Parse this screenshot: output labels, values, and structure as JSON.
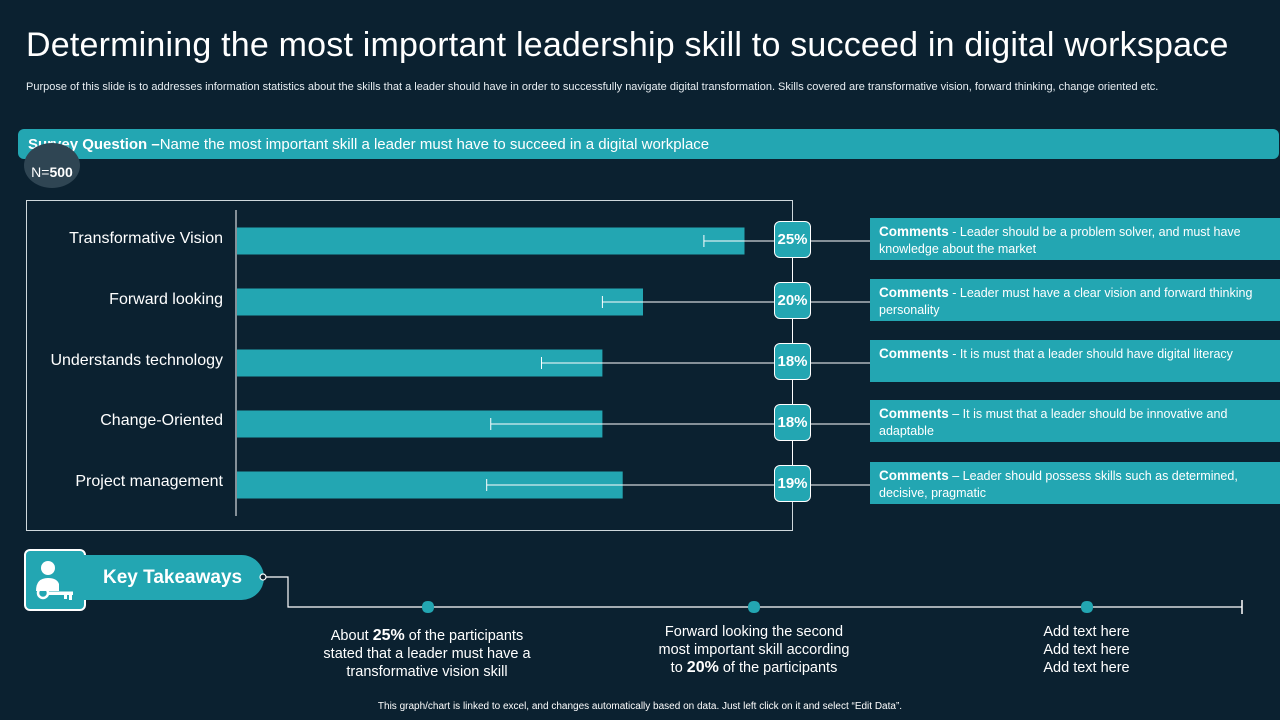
{
  "title": "Determining the most important leadership skill to succeed in digital workspace",
  "subtitle": "Purpose of this slide is to addresses information statistics about the skills that a leader should have in order to successfully navigate digital transformation. Skills covered are transformative vision, forward thinking, change oriented etc.",
  "survey": {
    "label": "Survey Question –",
    "question": " Name the most important skill a leader must have to succeed in a digital workplace",
    "n_prefix": "N=",
    "n_value": "500"
  },
  "chart_data": {
    "type": "bar",
    "orientation": "horizontal",
    "categories": [
      "Transformative Vision",
      "Forward looking",
      "Understands technology",
      "Change-Oriented",
      "Project management"
    ],
    "values": [
      25,
      20,
      18,
      18,
      19
    ],
    "value_labels": [
      "25%",
      "20%",
      "18%",
      "18%",
      "19%"
    ],
    "error_low": [
      23,
      18,
      15,
      12.5,
      12.3
    ],
    "bar_color": "#23a6b2",
    "title": "",
    "xlabel": "",
    "ylabel": ""
  },
  "comments": [
    {
      "label": "Comments",
      "text": " - Leader should be a problem solver, and must have knowledge about the market"
    },
    {
      "label": "Comments",
      "text": " - Leader must have a clear vision and forward thinking personality"
    },
    {
      "label": "Comments",
      "text": " - It is must that a leader should have digital literacy"
    },
    {
      "label": "Comments",
      "text": " – It is must that a leader should be innovative and adaptable"
    },
    {
      "label": "Comments",
      "text": " – Leader should possess skills such as determined, decisive, pragmatic"
    }
  ],
  "key_takeaways": {
    "title": "Key Takeaways",
    "icon": "person-key-icon",
    "items": [
      {
        "pre": "About ",
        "bold": "25%",
        "post": " of the participants stated that a leader must have a transformative vision skill"
      },
      {
        "pre": "Forward looking the second most important skill according to ",
        "bold": "20%",
        "post": " of the participants"
      },
      {
        "pre": "Add text here Add text here Add text here",
        "bold": "",
        "post": ""
      }
    ]
  },
  "footer": "This graph/chart is linked to excel, and changes automatically based on data. Just left click on it and select “Edit Data”.",
  "colors": {
    "background": "#0b2130",
    "accent": "#23a6b2",
    "text": "#ffffff"
  }
}
